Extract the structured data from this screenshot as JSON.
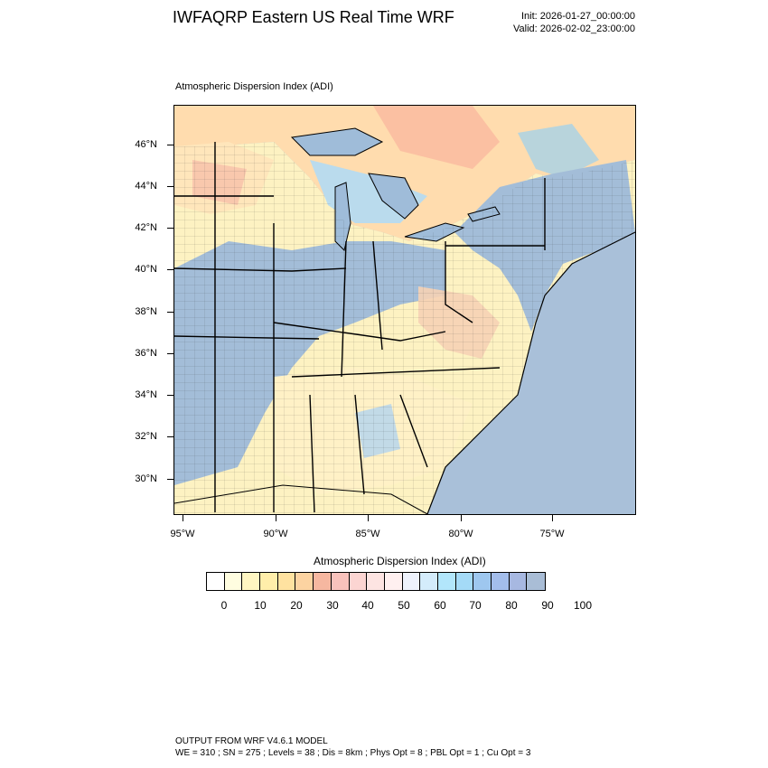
{
  "header": {
    "title": "IWFAQRP Eastern US Real Time WRF",
    "init": "Init: 2026-01-27_00:00:00",
    "valid": "Valid: 2026-02-02_23:00:00"
  },
  "map": {
    "subtitle": "Atmospheric Dispersion Index   (ADI)",
    "lat_labels": [
      "46°N",
      "44°N",
      "42°N",
      "40°N",
      "38°N",
      "36°N",
      "34°N",
      "32°N",
      "30°N"
    ],
    "lon_labels": [
      "95°W",
      "90°W",
      "85°W",
      "80°W",
      "75°W"
    ]
  },
  "colorbar": {
    "title": "Atmospheric Dispersion Index  (ADI)",
    "colors": [
      "#ffffff",
      "#fffde0",
      "#fff6c2",
      "#ffeeaa",
      "#ffe2a0",
      "#fcd3a1",
      "#f6b7a0",
      "#f9c2bc",
      "#fcd5d2",
      "#fde4e2",
      "#fff0f0",
      "#eef2fc",
      "#d4ecfb",
      "#b2e6fb",
      "#a4daf7",
      "#9ec7ef",
      "#a3bdeb",
      "#a7b8e1",
      "#a9bdd6"
    ],
    "labels": [
      "0",
      "10",
      "20",
      "30",
      "40",
      "50",
      "60",
      "70",
      "80",
      "90",
      "100"
    ]
  },
  "footer": {
    "line1": "OUTPUT FROM WRF V4.6.1 MODEL",
    "line2": "WE = 310 ; SN = 275 ; Levels = 38 ; Dis = 8km ; Phys Opt = 8 ; PBL Opt = 1 ; Cu Opt = 3"
  }
}
